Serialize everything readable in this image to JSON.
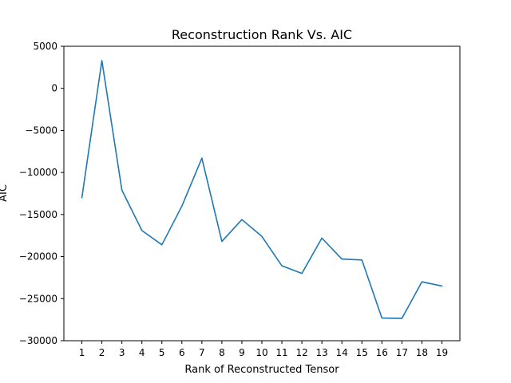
{
  "chart_data": {
    "type": "line",
    "title": "Reconstruction Rank Vs. AIC",
    "xlabel": "Rank of Reconstructed Tensor",
    "ylabel": "AIC",
    "x": [
      1,
      2,
      3,
      4,
      5,
      6,
      7,
      8,
      9,
      10,
      11,
      12,
      13,
      14,
      15,
      16,
      17,
      18,
      19
    ],
    "y": [
      -13000,
      3300,
      -12100,
      -16900,
      -18600,
      -14000,
      -8300,
      -18200,
      -15600,
      -17600,
      -21100,
      -22000,
      -17800,
      -20300,
      -20400,
      -27300,
      -27350,
      -23000,
      -23500
    ],
    "xlim": [
      0.1,
      19.9
    ],
    "ylim": [
      -30000,
      5000
    ],
    "yticks": [
      5000,
      0,
      -5000,
      -10000,
      -15000,
      -20000,
      -25000,
      -30000
    ],
    "xticks": [
      1,
      2,
      3,
      4,
      5,
      6,
      7,
      8,
      9,
      10,
      11,
      12,
      13,
      14,
      15,
      16,
      17,
      18,
      19
    ],
    "color": "#1f77b4",
    "grid": false,
    "legend": false
  }
}
